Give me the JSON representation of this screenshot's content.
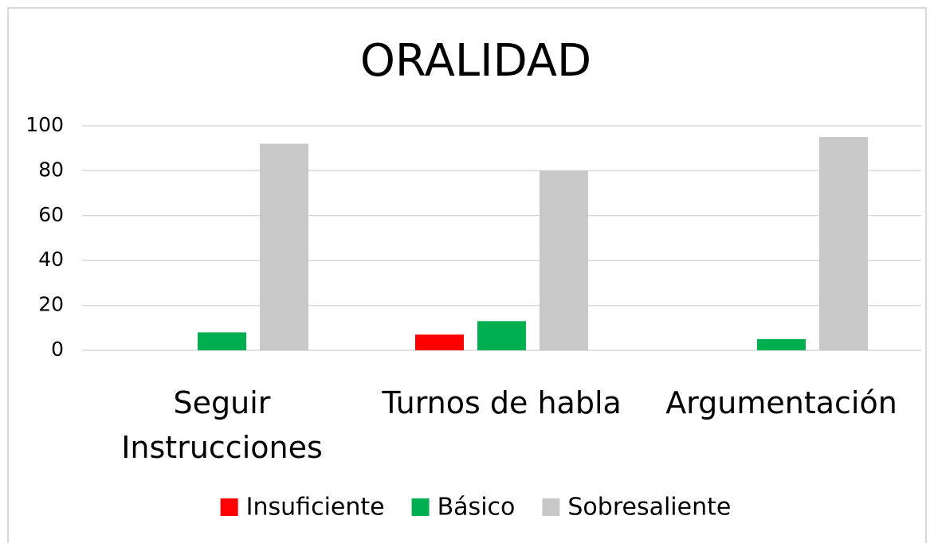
{
  "chart_data": {
    "type": "bar",
    "title": "ORALIDAD",
    "categories": [
      "Seguir Instrucciones",
      "Turnos de habla",
      "Argumentación"
    ],
    "series": [
      {
        "name": "Insuficiente",
        "color": "#ff0000",
        "values": [
          0,
          7,
          0
        ]
      },
      {
        "name": "Básico",
        "color": "#00b050",
        "values": [
          8,
          13,
          5
        ]
      },
      {
        "name": "Sobresaliente",
        "color": "#c8c8c8",
        "values": [
          92,
          80,
          95
        ]
      }
    ],
    "ylim": [
      0,
      100
    ],
    "yticks": [
      0,
      20,
      40,
      60,
      80,
      100
    ],
    "grid": true,
    "legend": "bottom"
  }
}
